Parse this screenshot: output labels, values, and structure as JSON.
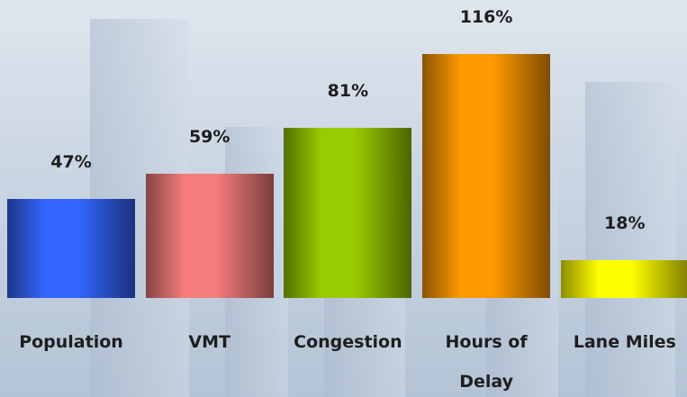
{
  "chart_data": {
    "type": "bar",
    "categories": [
      "Population",
      "VMT",
      "Congestion",
      "Hours of Delay",
      "Lane Miles"
    ],
    "values": [
      47,
      59,
      81,
      116,
      18
    ],
    "value_labels": [
      "47%",
      "59%",
      "81%",
      "116%",
      "18%"
    ],
    "colors": [
      "#3366ff",
      "#f57c7c",
      "#99cc00",
      "#ff9900",
      "#ffff00"
    ]
  }
}
